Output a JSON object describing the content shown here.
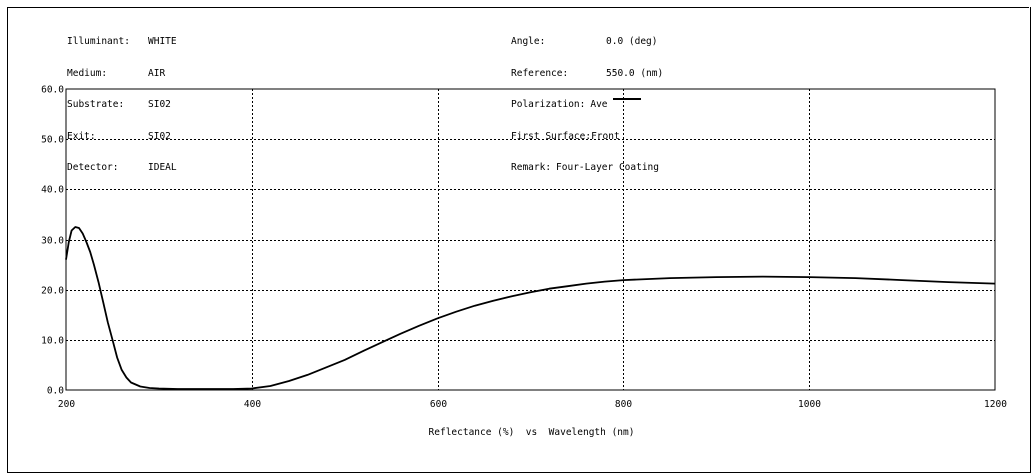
{
  "header": {
    "left": [
      {
        "key": "Illuminant:",
        "value": "WHITE"
      },
      {
        "key": "Medium:",
        "value": "AIR"
      },
      {
        "key": "Substrate:",
        "value": "SI02"
      },
      {
        "key": "Exit:",
        "value": "SI02"
      },
      {
        "key": "Detector:",
        "value": "IDEAL"
      }
    ],
    "right": [
      {
        "key": "Angle:",
        "value": "0.0 (deg)"
      },
      {
        "key": "Reference:",
        "value": "550.0 (nm)"
      },
      {
        "key": "Polarization:",
        "value": "Ave"
      },
      {
        "key": "First Surface:",
        "value": "Front"
      },
      {
        "key": "Remark:",
        "value": "Four-Layer Coating"
      }
    ]
  },
  "chart_data": {
    "type": "line",
    "xlabel": "Reflectance (%)  vs  Wavelength (nm)",
    "ylabel": "",
    "xlim": [
      200,
      1200
    ],
    "ylim": [
      0,
      60
    ],
    "x_ticks": [
      "200",
      "400",
      "600",
      "800",
      "1000",
      "1200"
    ],
    "y_ticks": [
      "0.0",
      "10.0",
      "20.0",
      "30.0",
      "40.0",
      "50.0",
      "60.0"
    ],
    "grid": true,
    "series": [
      {
        "name": "Ave",
        "color": "#000000",
        "x": [
          200,
          203,
          206,
          210,
          214,
          218,
          222,
          226,
          230,
          235,
          240,
          245,
          250,
          255,
          260,
          265,
          270,
          280,
          290,
          300,
          320,
          340,
          360,
          380,
          400,
          420,
          440,
          460,
          480,
          500,
          520,
          540,
          560,
          580,
          600,
          620,
          640,
          660,
          680,
          700,
          720,
          740,
          760,
          780,
          800,
          850,
          900,
          950,
          1000,
          1050,
          1100,
          1150,
          1200
        ],
        "values": [
          26.0,
          29.5,
          31.8,
          32.5,
          32.3,
          31.2,
          29.5,
          27.5,
          25.0,
          21.5,
          17.5,
          13.5,
          10.0,
          6.5,
          4.0,
          2.5,
          1.5,
          0.7,
          0.4,
          0.3,
          0.2,
          0.2,
          0.2,
          0.2,
          0.3,
          0.8,
          1.8,
          3.0,
          4.5,
          6.0,
          7.8,
          9.5,
          11.2,
          12.8,
          14.3,
          15.6,
          16.8,
          17.8,
          18.7,
          19.5,
          20.2,
          20.7,
          21.2,
          21.6,
          21.9,
          22.3,
          22.5,
          22.6,
          22.5,
          22.3,
          21.9,
          21.5,
          21.2
        ]
      }
    ]
  }
}
